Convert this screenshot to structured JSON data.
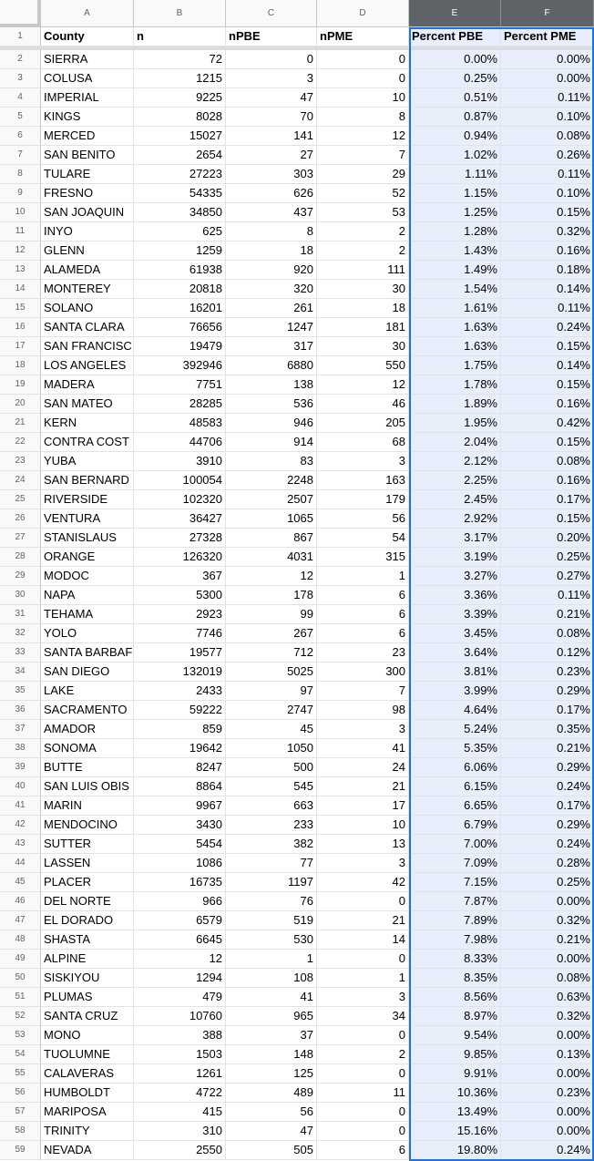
{
  "sheet": {
    "column_letters": [
      "A",
      "B",
      "C",
      "D",
      "E",
      "F"
    ],
    "header_row_number": "1",
    "headers": [
      "County",
      "n",
      "nPBE",
      "nPME",
      "Percent PBE",
      "Percent PME"
    ],
    "rows": [
      {
        "num": "2",
        "county": "SIERRA",
        "n": "72",
        "npbe": "0",
        "npme": "0",
        "pct_pbe": "0.00%",
        "pct_pme": "0.00%"
      },
      {
        "num": "3",
        "county": "COLUSA",
        "n": "1215",
        "npbe": "3",
        "npme": "0",
        "pct_pbe": "0.25%",
        "pct_pme": "0.00%"
      },
      {
        "num": "4",
        "county": "IMPERIAL",
        "n": "9225",
        "npbe": "47",
        "npme": "10",
        "pct_pbe": "0.51%",
        "pct_pme": "0.11%"
      },
      {
        "num": "5",
        "county": "KINGS",
        "n": "8028",
        "npbe": "70",
        "npme": "8",
        "pct_pbe": "0.87%",
        "pct_pme": "0.10%"
      },
      {
        "num": "6",
        "county": "MERCED",
        "n": "15027",
        "npbe": "141",
        "npme": "12",
        "pct_pbe": "0.94%",
        "pct_pme": "0.08%"
      },
      {
        "num": "7",
        "county": "SAN BENITO",
        "n": "2654",
        "npbe": "27",
        "npme": "7",
        "pct_pbe": "1.02%",
        "pct_pme": "0.26%"
      },
      {
        "num": "8",
        "county": "TULARE",
        "n": "27223",
        "npbe": "303",
        "npme": "29",
        "pct_pbe": "1.11%",
        "pct_pme": "0.11%"
      },
      {
        "num": "9",
        "county": "FRESNO",
        "n": "54335",
        "npbe": "626",
        "npme": "52",
        "pct_pbe": "1.15%",
        "pct_pme": "0.10%"
      },
      {
        "num": "10",
        "county": "SAN JOAQUIN",
        "n": "34850",
        "npbe": "437",
        "npme": "53",
        "pct_pbe": "1.25%",
        "pct_pme": "0.15%"
      },
      {
        "num": "11",
        "county": "INYO",
        "n": "625",
        "npbe": "8",
        "npme": "2",
        "pct_pbe": "1.28%",
        "pct_pme": "0.32%"
      },
      {
        "num": "12",
        "county": "GLENN",
        "n": "1259",
        "npbe": "18",
        "npme": "2",
        "pct_pbe": "1.43%",
        "pct_pme": "0.16%"
      },
      {
        "num": "13",
        "county": "ALAMEDA",
        "n": "61938",
        "npbe": "920",
        "npme": "111",
        "pct_pbe": "1.49%",
        "pct_pme": "0.18%"
      },
      {
        "num": "14",
        "county": "MONTEREY",
        "n": "20818",
        "npbe": "320",
        "npme": "30",
        "pct_pbe": "1.54%",
        "pct_pme": "0.14%"
      },
      {
        "num": "15",
        "county": "SOLANO",
        "n": "16201",
        "npbe": "261",
        "npme": "18",
        "pct_pbe": "1.61%",
        "pct_pme": "0.11%"
      },
      {
        "num": "16",
        "county": "SANTA CLARA",
        "n": "76656",
        "npbe": "1247",
        "npme": "181",
        "pct_pbe": "1.63%",
        "pct_pme": "0.24%"
      },
      {
        "num": "17",
        "county": "SAN FRANCISC",
        "n": "19479",
        "npbe": "317",
        "npme": "30",
        "pct_pbe": "1.63%",
        "pct_pme": "0.15%"
      },
      {
        "num": "18",
        "county": "LOS ANGELES",
        "n": "392946",
        "npbe": "6880",
        "npme": "550",
        "pct_pbe": "1.75%",
        "pct_pme": "0.14%"
      },
      {
        "num": "19",
        "county": "MADERA",
        "n": "7751",
        "npbe": "138",
        "npme": "12",
        "pct_pbe": "1.78%",
        "pct_pme": "0.15%"
      },
      {
        "num": "20",
        "county": "SAN MATEO",
        "n": "28285",
        "npbe": "536",
        "npme": "46",
        "pct_pbe": "1.89%",
        "pct_pme": "0.16%"
      },
      {
        "num": "21",
        "county": "KERN",
        "n": "48583",
        "npbe": "946",
        "npme": "205",
        "pct_pbe": "1.95%",
        "pct_pme": "0.42%"
      },
      {
        "num": "22",
        "county": "CONTRA COST",
        "n": "44706",
        "npbe": "914",
        "npme": "68",
        "pct_pbe": "2.04%",
        "pct_pme": "0.15%"
      },
      {
        "num": "23",
        "county": "YUBA",
        "n": "3910",
        "npbe": "83",
        "npme": "3",
        "pct_pbe": "2.12%",
        "pct_pme": "0.08%"
      },
      {
        "num": "24",
        "county": "SAN BERNARD",
        "n": "100054",
        "npbe": "2248",
        "npme": "163",
        "pct_pbe": "2.25%",
        "pct_pme": "0.16%"
      },
      {
        "num": "25",
        "county": "RIVERSIDE",
        "n": "102320",
        "npbe": "2507",
        "npme": "179",
        "pct_pbe": "2.45%",
        "pct_pme": "0.17%"
      },
      {
        "num": "26",
        "county": "VENTURA",
        "n": "36427",
        "npbe": "1065",
        "npme": "56",
        "pct_pbe": "2.92%",
        "pct_pme": "0.15%"
      },
      {
        "num": "27",
        "county": "STANISLAUS",
        "n": "27328",
        "npbe": "867",
        "npme": "54",
        "pct_pbe": "3.17%",
        "pct_pme": "0.20%"
      },
      {
        "num": "28",
        "county": "ORANGE",
        "n": "126320",
        "npbe": "4031",
        "npme": "315",
        "pct_pbe": "3.19%",
        "pct_pme": "0.25%"
      },
      {
        "num": "29",
        "county": "MODOC",
        "n": "367",
        "npbe": "12",
        "npme": "1",
        "pct_pbe": "3.27%",
        "pct_pme": "0.27%"
      },
      {
        "num": "30",
        "county": "NAPA",
        "n": "5300",
        "npbe": "178",
        "npme": "6",
        "pct_pbe": "3.36%",
        "pct_pme": "0.11%"
      },
      {
        "num": "31",
        "county": "TEHAMA",
        "n": "2923",
        "npbe": "99",
        "npme": "6",
        "pct_pbe": "3.39%",
        "pct_pme": "0.21%"
      },
      {
        "num": "32",
        "county": "YOLO",
        "n": "7746",
        "npbe": "267",
        "npme": "6",
        "pct_pbe": "3.45%",
        "pct_pme": "0.08%"
      },
      {
        "num": "33",
        "county": "SANTA BARBAF",
        "n": "19577",
        "npbe": "712",
        "npme": "23",
        "pct_pbe": "3.64%",
        "pct_pme": "0.12%"
      },
      {
        "num": "34",
        "county": "SAN DIEGO",
        "n": "132019",
        "npbe": "5025",
        "npme": "300",
        "pct_pbe": "3.81%",
        "pct_pme": "0.23%"
      },
      {
        "num": "35",
        "county": "LAKE",
        "n": "2433",
        "npbe": "97",
        "npme": "7",
        "pct_pbe": "3.99%",
        "pct_pme": "0.29%"
      },
      {
        "num": "36",
        "county": "SACRAMENTO",
        "n": "59222",
        "npbe": "2747",
        "npme": "98",
        "pct_pbe": "4.64%",
        "pct_pme": "0.17%"
      },
      {
        "num": "37",
        "county": "AMADOR",
        "n": "859",
        "npbe": "45",
        "npme": "3",
        "pct_pbe": "5.24%",
        "pct_pme": "0.35%"
      },
      {
        "num": "38",
        "county": "SONOMA",
        "n": "19642",
        "npbe": "1050",
        "npme": "41",
        "pct_pbe": "5.35%",
        "pct_pme": "0.21%"
      },
      {
        "num": "39",
        "county": "BUTTE",
        "n": "8247",
        "npbe": "500",
        "npme": "24",
        "pct_pbe": "6.06%",
        "pct_pme": "0.29%"
      },
      {
        "num": "40",
        "county": "SAN LUIS OBIS",
        "n": "8864",
        "npbe": "545",
        "npme": "21",
        "pct_pbe": "6.15%",
        "pct_pme": "0.24%"
      },
      {
        "num": "41",
        "county": "MARIN",
        "n": "9967",
        "npbe": "663",
        "npme": "17",
        "pct_pbe": "6.65%",
        "pct_pme": "0.17%"
      },
      {
        "num": "42",
        "county": "MENDOCINO",
        "n": "3430",
        "npbe": "233",
        "npme": "10",
        "pct_pbe": "6.79%",
        "pct_pme": "0.29%"
      },
      {
        "num": "43",
        "county": "SUTTER",
        "n": "5454",
        "npbe": "382",
        "npme": "13",
        "pct_pbe": "7.00%",
        "pct_pme": "0.24%"
      },
      {
        "num": "44",
        "county": "LASSEN",
        "n": "1086",
        "npbe": "77",
        "npme": "3",
        "pct_pbe": "7.09%",
        "pct_pme": "0.28%"
      },
      {
        "num": "45",
        "county": "PLACER",
        "n": "16735",
        "npbe": "1197",
        "npme": "42",
        "pct_pbe": "7.15%",
        "pct_pme": "0.25%"
      },
      {
        "num": "46",
        "county": "DEL NORTE",
        "n": "966",
        "npbe": "76",
        "npme": "0",
        "pct_pbe": "7.87%",
        "pct_pme": "0.00%"
      },
      {
        "num": "47",
        "county": "EL DORADO",
        "n": "6579",
        "npbe": "519",
        "npme": "21",
        "pct_pbe": "7.89%",
        "pct_pme": "0.32%"
      },
      {
        "num": "48",
        "county": "SHASTA",
        "n": "6645",
        "npbe": "530",
        "npme": "14",
        "pct_pbe": "7.98%",
        "pct_pme": "0.21%"
      },
      {
        "num": "49",
        "county": "ALPINE",
        "n": "12",
        "npbe": "1",
        "npme": "0",
        "pct_pbe": "8.33%",
        "pct_pme": "0.00%"
      },
      {
        "num": "50",
        "county": "SISKIYOU",
        "n": "1294",
        "npbe": "108",
        "npme": "1",
        "pct_pbe": "8.35%",
        "pct_pme": "0.08%"
      },
      {
        "num": "51",
        "county": "PLUMAS",
        "n": "479",
        "npbe": "41",
        "npme": "3",
        "pct_pbe": "8.56%",
        "pct_pme": "0.63%"
      },
      {
        "num": "52",
        "county": "SANTA CRUZ",
        "n": "10760",
        "npbe": "965",
        "npme": "34",
        "pct_pbe": "8.97%",
        "pct_pme": "0.32%"
      },
      {
        "num": "53",
        "county": "MONO",
        "n": "388",
        "npbe": "37",
        "npme": "0",
        "pct_pbe": "9.54%",
        "pct_pme": "0.00%"
      },
      {
        "num": "54",
        "county": "TUOLUMNE",
        "n": "1503",
        "npbe": "148",
        "npme": "2",
        "pct_pbe": "9.85%",
        "pct_pme": "0.13%"
      },
      {
        "num": "55",
        "county": "CALAVERAS",
        "n": "1261",
        "npbe": "125",
        "npme": "0",
        "pct_pbe": "9.91%",
        "pct_pme": "0.00%"
      },
      {
        "num": "56",
        "county": "HUMBOLDT",
        "n": "4722",
        "npbe": "489",
        "npme": "11",
        "pct_pbe": "10.36%",
        "pct_pme": "0.23%"
      },
      {
        "num": "57",
        "county": "MARIPOSA",
        "n": "415",
        "npbe": "56",
        "npme": "0",
        "pct_pbe": "13.49%",
        "pct_pme": "0.00%"
      },
      {
        "num": "58",
        "county": "TRINITY",
        "n": "310",
        "npbe": "47",
        "npme": "0",
        "pct_pbe": "15.16%",
        "pct_pme": "0.00%"
      },
      {
        "num": "59",
        "county": "NEVADA",
        "n": "2550",
        "npbe": "505",
        "npme": "6",
        "pct_pbe": "19.80%",
        "pct_pme": "0.24%"
      }
    ]
  },
  "colors": {
    "selection_fill": "#e8eefb",
    "selection_border": "#1a73e8",
    "active_header": "#5f6368",
    "header_bg": "#f8f9fa",
    "grid_line": "#e2e3e3"
  }
}
